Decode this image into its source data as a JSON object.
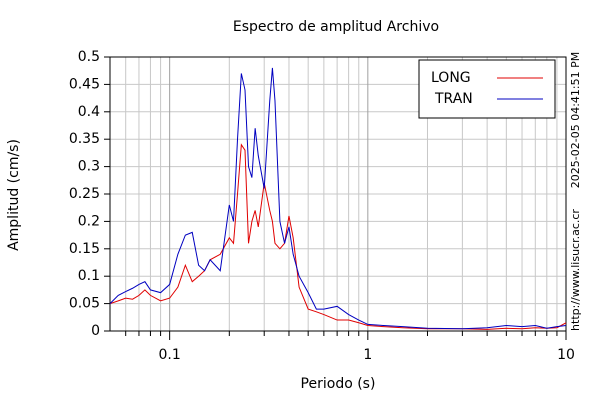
{
  "chart_data": {
    "type": "line",
    "title": "Espectro de amplitud Archivo",
    "x_label": "Periodo (s)",
    "y_label": "Amplitud (cm/s)",
    "side_texts": [
      "2025-02-05 04:41:51 PM",
      "http://www.lisucr.ac.cr"
    ],
    "x_scale": "log",
    "grid": true,
    "legend": "upper right",
    "xlim": [
      0.05,
      10
    ],
    "ylim": [
      0,
      0.5
    ],
    "xticks": [
      0.1,
      1,
      10
    ],
    "yticks": [
      0,
      0.05,
      0.1,
      0.15,
      0.2,
      0.25,
      0.3,
      0.35,
      0.4,
      0.45,
      0.5
    ],
    "x": [
      0.05,
      0.055,
      0.06,
      0.065,
      0.07,
      0.075,
      0.08,
      0.09,
      0.1,
      0.11,
      0.12,
      0.13,
      0.14,
      0.15,
      0.16,
      0.18,
      0.2,
      0.21,
      0.22,
      0.23,
      0.24,
      0.25,
      0.26,
      0.27,
      0.28,
      0.3,
      0.32,
      0.33,
      0.34,
      0.36,
      0.38,
      0.4,
      0.42,
      0.45,
      0.5,
      0.55,
      0.6,
      0.7,
      0.8,
      0.9,
      1,
      1.2,
      1.5,
      2,
      3,
      4,
      5,
      6,
      7,
      8,
      9,
      10
    ],
    "series": [
      {
        "name": "LONG",
        "color": "#e00000",
        "values": [
          0.05,
          0.055,
          0.06,
          0.058,
          0.065,
          0.075,
          0.065,
          0.055,
          0.06,
          0.08,
          0.12,
          0.09,
          0.1,
          0.11,
          0.13,
          0.14,
          0.17,
          0.16,
          0.25,
          0.34,
          0.33,
          0.16,
          0.2,
          0.22,
          0.19,
          0.27,
          0.22,
          0.2,
          0.16,
          0.15,
          0.16,
          0.21,
          0.17,
          0.08,
          0.04,
          0.035,
          0.03,
          0.02,
          0.02,
          0.015,
          0.01,
          0.008,
          0.006,
          0.004,
          0.004,
          0.003,
          0.005,
          0.004,
          0.006,
          0.005,
          0.006,
          0.015
        ]
      },
      {
        "name": "TRAN",
        "color": "#0000c0",
        "values": [
          0.05,
          0.065,
          0.072,
          0.078,
          0.085,
          0.09,
          0.075,
          0.07,
          0.085,
          0.14,
          0.175,
          0.18,
          0.12,
          0.11,
          0.13,
          0.11,
          0.23,
          0.2,
          0.35,
          0.47,
          0.44,
          0.3,
          0.28,
          0.37,
          0.32,
          0.26,
          0.42,
          0.48,
          0.42,
          0.2,
          0.16,
          0.19,
          0.14,
          0.1,
          0.07,
          0.04,
          0.04,
          0.045,
          0.03,
          0.02,
          0.012,
          0.01,
          0.008,
          0.005,
          0.004,
          0.006,
          0.01,
          0.008,
          0.01,
          0.005,
          0.008,
          0.01
        ]
      }
    ]
  }
}
